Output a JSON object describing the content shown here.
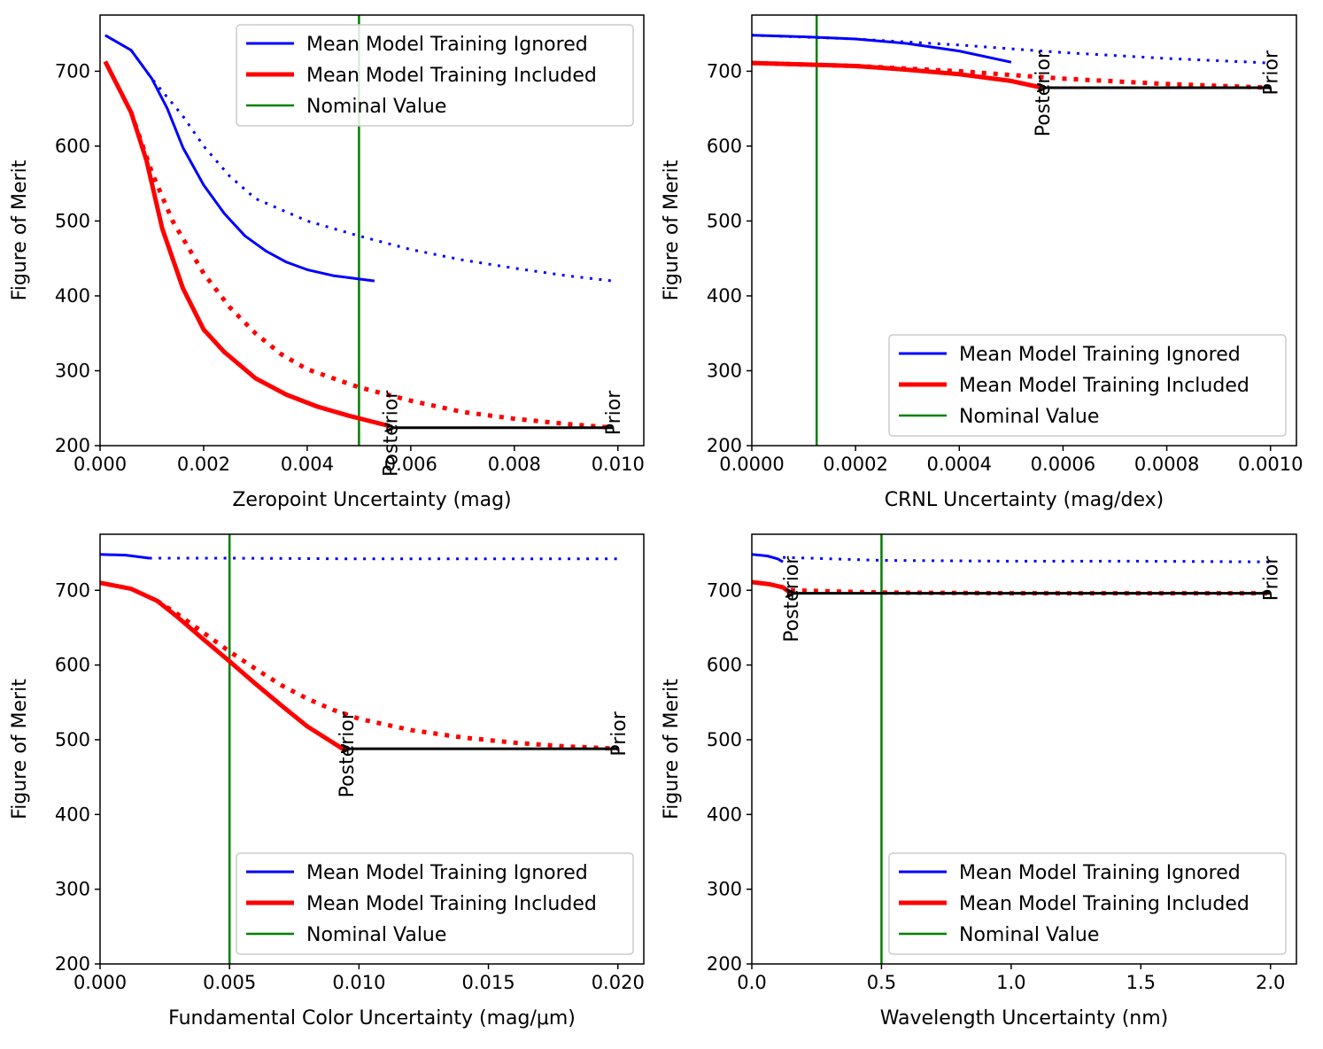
{
  "colors": {
    "ignored": "#0000ff",
    "included": "#ff0000",
    "nominal": "#008000",
    "arrow": "#000000"
  },
  "chart_data": [
    {
      "type": "line",
      "xlabel": "Zeropoint Uncertainty (mag)",
      "ylabel": "Figure of Merit",
      "xlim": [
        0.0,
        0.0105
      ],
      "ylim": [
        200,
        775
      ],
      "xticks": [
        0.0,
        0.002,
        0.004,
        0.006,
        0.008,
        0.01
      ],
      "xtick_labels": [
        "0.000",
        "0.002",
        "0.004",
        "0.006",
        "0.008",
        "0.010"
      ],
      "yticks": [
        200,
        300,
        400,
        500,
        600,
        700
      ],
      "ytick_labels": [
        "200",
        "300",
        "400",
        "500",
        "600",
        "700"
      ],
      "legend": {
        "position": "top-right",
        "entries": [
          "Mean Model Training Ignored",
          "Mean Model Training Included",
          "Nominal Value"
        ]
      },
      "nominal_x": 0.005,
      "series": [
        {
          "name": "Mean Model Training Ignored",
          "color": "ignored",
          "style": "solid",
          "width": 3,
          "points": [
            [
              0.0001,
              748
            ],
            [
              0.0006,
              728
            ],
            [
              0.001,
              690
            ],
            [
              0.0013,
              650
            ],
            [
              0.0016,
              598
            ],
            [
              0.002,
              548
            ],
            [
              0.0024,
              510
            ],
            [
              0.0028,
              480
            ],
            [
              0.0032,
              460
            ],
            [
              0.0036,
              445
            ],
            [
              0.004,
              435
            ],
            [
              0.0045,
              427
            ],
            [
              0.0053,
              420
            ]
          ]
        },
        {
          "name": "Mean Model Training Ignored (prior)",
          "color": "ignored",
          "style": "dotted",
          "width": 3,
          "points": [
            [
              0.0006,
              728
            ],
            [
              0.001,
              690
            ],
            [
              0.0016,
              640
            ],
            [
              0.002,
              600
            ],
            [
              0.0025,
              560
            ],
            [
              0.003,
              530
            ],
            [
              0.004,
              500
            ],
            [
              0.005,
              480
            ],
            [
              0.006,
              462
            ],
            [
              0.007,
              448
            ],
            [
              0.008,
              437
            ],
            [
              0.009,
              427
            ],
            [
              0.0099,
              420
            ]
          ]
        },
        {
          "name": "Mean Model Training Included",
          "color": "included",
          "style": "solid",
          "width": 5,
          "points": [
            [
              0.0001,
              713
            ],
            [
              0.0006,
              645
            ],
            [
              0.0009,
              580
            ],
            [
              0.0012,
              490
            ],
            [
              0.0016,
              410
            ],
            [
              0.002,
              355
            ],
            [
              0.0024,
              325
            ],
            [
              0.003,
              290
            ],
            [
              0.0036,
              268
            ],
            [
              0.0042,
              252
            ],
            [
              0.0048,
              240
            ],
            [
              0.0056,
              226
            ]
          ]
        },
        {
          "name": "Mean Model Training Included (prior)",
          "color": "included",
          "style": "dotted",
          "width": 5,
          "points": [
            [
              0.0006,
              645
            ],
            [
              0.001,
              565
            ],
            [
              0.0014,
              500
            ],
            [
              0.002,
              430
            ],
            [
              0.0025,
              385
            ],
            [
              0.003,
              350
            ],
            [
              0.0035,
              322
            ],
            [
              0.004,
              302
            ],
            [
              0.005,
              278
            ],
            [
              0.006,
              260
            ],
            [
              0.007,
              245
            ],
            [
              0.008,
              236
            ],
            [
              0.009,
              229
            ],
            [
              0.0099,
              224
            ]
          ]
        }
      ],
      "arrow": {
        "from": [
          0.0099,
          224
        ],
        "to": [
          0.0056,
          224
        ]
      },
      "annotations": [
        {
          "text": "Posterior",
          "x": 0.0056,
          "y": 224
        },
        {
          "text": "Prior",
          "x": 0.0099,
          "y": 224
        }
      ]
    },
    {
      "type": "line",
      "xlabel": "CRNL Uncertainty (mag/dex)",
      "ylabel": "Figure of Merit",
      "xlim": [
        0.0,
        0.00105
      ],
      "ylim": [
        200,
        775
      ],
      "xticks": [
        0.0,
        0.0002,
        0.0004,
        0.0006,
        0.0008,
        0.001
      ],
      "xtick_labels": [
        "0.0000",
        "0.0002",
        "0.0004",
        "0.0006",
        "0.0008",
        "0.0010"
      ],
      "yticks": [
        200,
        300,
        400,
        500,
        600,
        700
      ],
      "ytick_labels": [
        "200",
        "300",
        "400",
        "500",
        "600",
        "700"
      ],
      "legend": {
        "position": "lower-right",
        "entries": [
          "Mean Model Training Ignored",
          "Mean Model Training Included",
          "Nominal Value"
        ]
      },
      "nominal_x": 0.000125,
      "series": [
        {
          "name": "Mean Model Training Ignored",
          "color": "ignored",
          "style": "solid",
          "width": 3,
          "points": [
            [
              0.0,
              748
            ],
            [
              0.0001,
              746
            ],
            [
              0.0002,
              743
            ],
            [
              0.0003,
              737
            ],
            [
              0.0004,
              727
            ],
            [
              0.0005,
              712
            ]
          ]
        },
        {
          "name": "Mean Model Training Ignored (prior)",
          "color": "ignored",
          "style": "dotted",
          "width": 3,
          "points": [
            [
              0.0,
              748
            ],
            [
              0.0002,
              743
            ],
            [
              0.0004,
              735
            ],
            [
              0.0006,
              725
            ],
            [
              0.0008,
              717
            ],
            [
              0.001,
              711
            ]
          ]
        },
        {
          "name": "Mean Model Training Included",
          "color": "included",
          "style": "solid",
          "width": 5,
          "points": [
            [
              0.0,
              711
            ],
            [
              0.0001,
              709
            ],
            [
              0.0002,
              707
            ],
            [
              0.0003,
              702
            ],
            [
              0.0004,
              696
            ],
            [
              0.0005,
              687
            ],
            [
              0.00056,
              678
            ]
          ]
        },
        {
          "name": "Mean Model Training Included (prior)",
          "color": "included",
          "style": "dotted",
          "width": 5,
          "points": [
            [
              0.0,
              711
            ],
            [
              0.0002,
              707
            ],
            [
              0.0004,
              700
            ],
            [
              0.0006,
              690
            ],
            [
              0.0008,
              683
            ],
            [
              0.001,
              678
            ]
          ]
        }
      ],
      "arrow": {
        "from": [
          0.001,
          678
        ],
        "to": [
          0.00056,
          678
        ]
      },
      "annotations": [
        {
          "text": "Posterior",
          "x": 0.00056,
          "y": 678
        },
        {
          "text": "Prior",
          "x": 0.001,
          "y": 678
        }
      ]
    },
    {
      "type": "line",
      "xlabel": "Fundamental Color Uncertainty (mag/μm)",
      "ylabel": "Figure of Merit",
      "xlim": [
        0.0,
        0.021
      ],
      "ylim": [
        200,
        775
      ],
      "xticks": [
        0.0,
        0.005,
        0.01,
        0.015,
        0.02
      ],
      "xtick_labels": [
        "0.000",
        "0.005",
        "0.010",
        "0.015",
        "0.020"
      ],
      "yticks": [
        200,
        300,
        400,
        500,
        600,
        700
      ],
      "ytick_labels": [
        "200",
        "300",
        "400",
        "500",
        "600",
        "700"
      ],
      "legend": {
        "position": "lower-right",
        "entries": [
          "Mean Model Training Ignored",
          "Mean Model Training Included",
          "Nominal Value"
        ]
      },
      "nominal_x": 0.005,
      "series": [
        {
          "name": "Mean Model Training Ignored",
          "color": "ignored",
          "style": "solid",
          "width": 3,
          "points": [
            [
              0.0,
              748
            ],
            [
              0.001,
              747
            ],
            [
              0.0019,
              743
            ]
          ]
        },
        {
          "name": "Mean Model Training Ignored (prior)",
          "color": "ignored",
          "style": "dotted",
          "width": 3,
          "points": [
            [
              0.0019,
              743
            ],
            [
              0.005,
              743
            ],
            [
              0.01,
              742
            ],
            [
              0.015,
              742
            ],
            [
              0.02,
              742
            ]
          ]
        },
        {
          "name": "Mean Model Training Included",
          "color": "included",
          "style": "solid",
          "width": 5,
          "points": [
            [
              0.0,
              710
            ],
            [
              0.0012,
              702
            ],
            [
              0.0022,
              686
            ],
            [
              0.003,
              664
            ],
            [
              0.004,
              634
            ],
            [
              0.005,
              605
            ],
            [
              0.006,
              575
            ],
            [
              0.007,
              546
            ],
            [
              0.008,
              518
            ],
            [
              0.0095,
              485
            ]
          ]
        },
        {
          "name": "Mean Model Training Included (prior)",
          "color": "included",
          "style": "dotted",
          "width": 5,
          "points": [
            [
              0.0022,
              686
            ],
            [
              0.003,
              668
            ],
            [
              0.004,
              643
            ],
            [
              0.005,
              618
            ],
            [
              0.006,
              595
            ],
            [
              0.007,
              573
            ],
            [
              0.008,
              555
            ],
            [
              0.009,
              540
            ],
            [
              0.01,
              528
            ],
            [
              0.012,
              513
            ],
            [
              0.014,
              503
            ],
            [
              0.016,
              496
            ],
            [
              0.018,
              491
            ],
            [
              0.02,
              488
            ]
          ]
        }
      ],
      "arrow": {
        "from": [
          0.02,
          488
        ],
        "to": [
          0.0095,
          488
        ]
      },
      "annotations": [
        {
          "text": "Posterior",
          "x": 0.0095,
          "y": 488
        },
        {
          "text": "Prior",
          "x": 0.02,
          "y": 488
        }
      ]
    },
    {
      "type": "line",
      "xlabel": "Wavelength Uncertainty (nm)",
      "ylabel": "Figure of Merit",
      "xlim": [
        0.0,
        2.1
      ],
      "ylim": [
        200,
        775
      ],
      "xticks": [
        0.0,
        0.5,
        1.0,
        1.5,
        2.0
      ],
      "xtick_labels": [
        "0.0",
        "0.5",
        "1.0",
        "1.5",
        "2.0"
      ],
      "yticks": [
        200,
        300,
        400,
        500,
        600,
        700
      ],
      "ytick_labels": [
        "200",
        "300",
        "400",
        "500",
        "600",
        "700"
      ],
      "legend": {
        "position": "lower-right",
        "entries": [
          "Mean Model Training Ignored",
          "Mean Model Training Included",
          "Nominal Value"
        ]
      },
      "nominal_x": 0.5,
      "series": [
        {
          "name": "Mean Model Training Ignored",
          "color": "ignored",
          "style": "solid",
          "width": 3,
          "points": [
            [
              0.0,
              748
            ],
            [
              0.06,
              746
            ],
            [
              0.1,
              742
            ],
            [
              0.12,
              738
            ]
          ]
        },
        {
          "name": "Mean Model Training Ignored (prior)",
          "color": "ignored",
          "style": "dotted",
          "width": 3,
          "points": [
            [
              0.12,
              744
            ],
            [
              0.5,
              740
            ],
            [
              1.0,
              739
            ],
            [
              1.5,
              739
            ],
            [
              2.0,
              738
            ]
          ]
        },
        {
          "name": "Mean Model Training Included",
          "color": "included",
          "style": "solid",
          "width": 5,
          "points": [
            [
              0.0,
              711
            ],
            [
              0.07,
              708
            ],
            [
              0.12,
              704
            ],
            [
              0.15,
              696
            ]
          ]
        },
        {
          "name": "Mean Model Training Included (prior)",
          "color": "included",
          "style": "dotted",
          "width": 5,
          "points": [
            [
              0.15,
              700
            ],
            [
              0.5,
              697
            ],
            [
              1.0,
              696
            ],
            [
              1.5,
              696
            ],
            [
              2.0,
              696
            ]
          ]
        }
      ],
      "arrow": {
        "from": [
          2.0,
          696
        ],
        "to": [
          0.15,
          696
        ]
      },
      "annotations": [
        {
          "text": "Posterior",
          "x": 0.15,
          "y": 696
        },
        {
          "text": "Prior",
          "x": 2.0,
          "y": 696
        }
      ]
    }
  ]
}
